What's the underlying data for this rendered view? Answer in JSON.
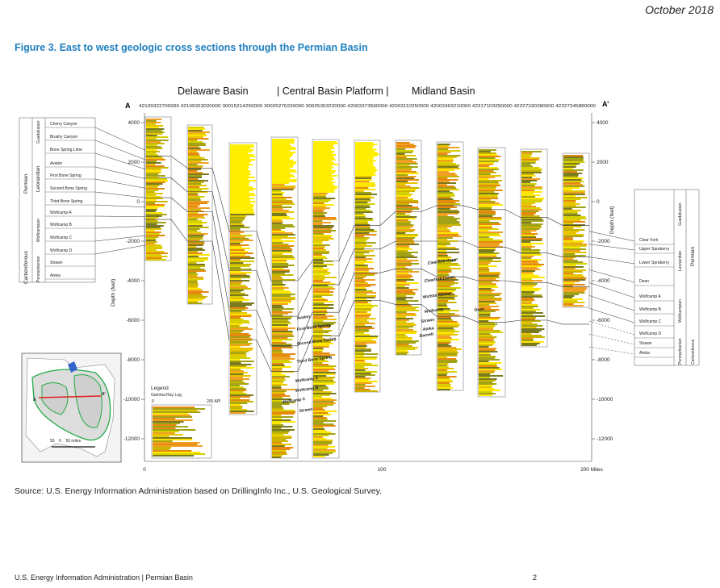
{
  "header": {
    "date": "October 2018"
  },
  "figure": {
    "title": "Figure 3. East to west geologic cross sections through the Permian Basin",
    "basins": [
      "Delaware Basin",
      "| Central Basin Platform |",
      "Midland Basin"
    ],
    "section_start": "A",
    "section_end": "A’",
    "well_ids": "42109322700000 42109323020000 30015214250000 30025276230000 30025353220000 42003373560000 42003110250000 42003369210000 42317103250000 42227330380000 42227345880000",
    "depth_label": "Depth (feet)",
    "depth_ticks": [
      "4000",
      "2000",
      "0",
      "-2000",
      "-4000",
      "-6000",
      "-8000",
      "-10000",
      "-12000"
    ],
    "depth_ticks_right": [
      "4000",
      "2000",
      "0",
      "-2000",
      "-4000",
      "-6000",
      "-8000",
      "-10000",
      "-12000"
    ],
    "distance_ticks": [
      "0",
      "100",
      "200 Miles"
    ],
    "left_formations": [
      "Cherry Canyon",
      "Brushy Canyon",
      "Bone Spring Lime",
      "Avalon",
      "First Bone Spring",
      "Second Bone Spring",
      "Third Bone Spring",
      "Wolfcamp A",
      "Wolfcamp B",
      "Wolfcamp C",
      "Wolfcamp D",
      "Strawn",
      "Atoka"
    ],
    "left_series": [
      "Guadalupian",
      "Leonardian",
      "Wolfcampian",
      "Pennsylvanian"
    ],
    "left_systems": [
      "Permian",
      "Carboniferous"
    ],
    "right_formations": [
      "Clear Fork",
      "Upper Spraberry",
      "Lower Spraberry",
      "Dean",
      "Wolfcamp A",
      "Wolfcamp B",
      "Wolfcamp C",
      "Wolfcamp D",
      "Strawn",
      "Atoka"
    ],
    "right_series": [
      "Guadalupian",
      "Leonardian",
      "Wolfcampian",
      "Pennsylvanian"
    ],
    "right_systems": [
      "Permian",
      "Carboniferous"
    ],
    "inline_labels": [
      "Avalon",
      "First Bone Spring",
      "Second Bone Spring",
      "Third Bone Spring",
      "Wolfcamp A",
      "Wolfcamp B",
      "Wolfcamp C",
      "Strawn",
      "Clearfork Upper",
      "Clearfork Lower",
      "Wichita Albany",
      "Wolfcamp",
      "Strawn",
      "Atoka",
      "Barnett",
      "Dean"
    ],
    "legend": {
      "title": "Legend",
      "subtitle": "Gamma Ray Log",
      "min": "0",
      "max": "200 API"
    },
    "map": {
      "a": "A",
      "a_prime": "A’",
      "scale": "50    0    50 miles"
    }
  },
  "source": "Source: U.S. Energy Information Administration based on DrillingInfo Inc., U.S. Geological Survey.",
  "footer": {
    "left": "U.S. Energy Information Administration  |  Permian Basin",
    "page": "2"
  },
  "colors": {
    "title": "#1f7fbf",
    "yellow": "#ffee00",
    "orange": "#f0a020",
    "olive": "#7a7a20",
    "map_green": "#22aa44",
    "section_line": "#e02020"
  }
}
